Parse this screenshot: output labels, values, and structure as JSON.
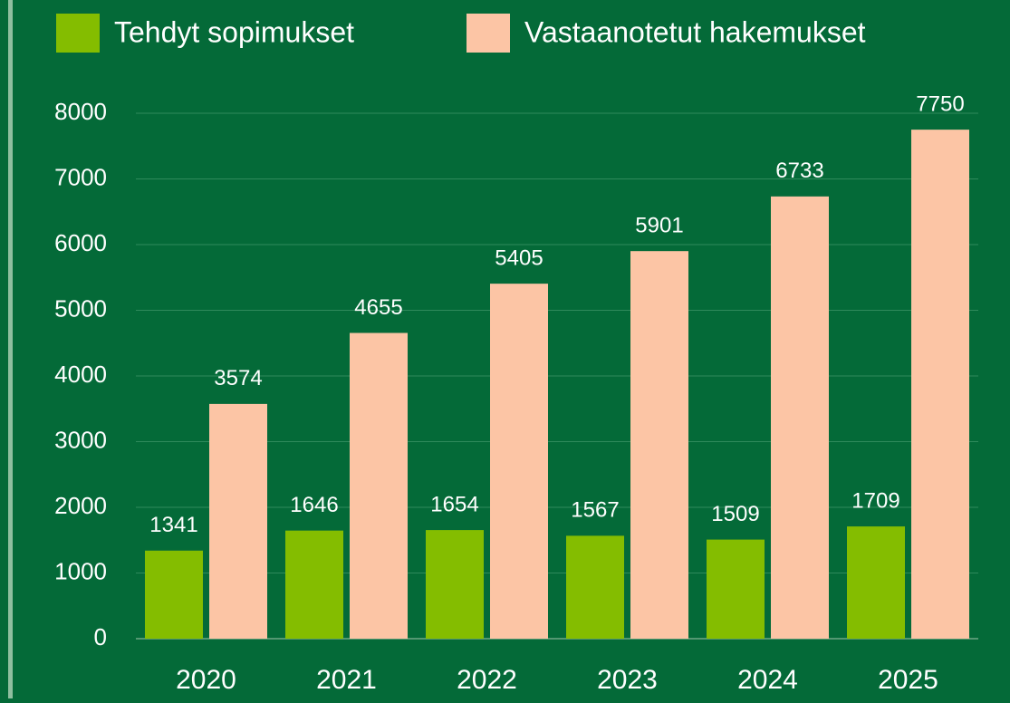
{
  "chart_data": {
    "type": "bar",
    "categories": [
      "2020",
      "2021",
      "2022",
      "2023",
      "2024",
      "2025"
    ],
    "series": [
      {
        "name": "Tehdyt sopimukset",
        "color": "#84bd00",
        "values": [
          1341,
          1646,
          1654,
          1567,
          1509,
          1709
        ]
      },
      {
        "name": "Vastaanotetut hakemukset",
        "color": "#fcc5a5",
        "values": [
          3574,
          4655,
          5405,
          5901,
          6733,
          7750
        ]
      }
    ],
    "ylim": [
      0,
      8000
    ],
    "yticks": [
      0,
      1000,
      2000,
      3000,
      4000,
      5000,
      6000,
      7000,
      8000
    ],
    "grid": true,
    "legend": "top",
    "data_labels": true
  }
}
